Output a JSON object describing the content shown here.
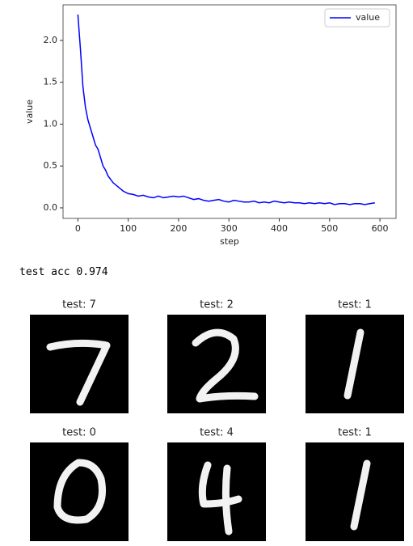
{
  "chart_data": {
    "type": "line",
    "xlabel": "step",
    "ylabel": "value",
    "x": [
      0,
      5,
      10,
      15,
      20,
      25,
      30,
      35,
      40,
      45,
      50,
      55,
      60,
      70,
      80,
      90,
      100,
      110,
      120,
      130,
      140,
      150,
      160,
      170,
      180,
      190,
      200,
      210,
      220,
      230,
      240,
      250,
      260,
      270,
      280,
      290,
      300,
      310,
      320,
      330,
      340,
      350,
      360,
      370,
      380,
      390,
      400,
      410,
      420,
      430,
      440,
      450,
      460,
      470,
      480,
      490,
      500,
      510,
      520,
      530,
      540,
      550,
      560,
      570,
      580,
      590
    ],
    "series": [
      {
        "name": "value",
        "color": "#0000ff",
        "values": [
          2.31,
          1.9,
          1.45,
          1.2,
          1.05,
          0.95,
          0.85,
          0.75,
          0.7,
          0.6,
          0.5,
          0.45,
          0.38,
          0.3,
          0.25,
          0.2,
          0.17,
          0.16,
          0.14,
          0.15,
          0.13,
          0.12,
          0.14,
          0.12,
          0.13,
          0.14,
          0.13,
          0.14,
          0.12,
          0.1,
          0.11,
          0.09,
          0.08,
          0.09,
          0.1,
          0.08,
          0.07,
          0.09,
          0.08,
          0.07,
          0.07,
          0.08,
          0.06,
          0.07,
          0.06,
          0.08,
          0.07,
          0.06,
          0.07,
          0.06,
          0.06,
          0.05,
          0.06,
          0.05,
          0.06,
          0.05,
          0.06,
          0.04,
          0.05,
          0.05,
          0.04,
          0.05,
          0.05,
          0.04,
          0.05,
          0.06
        ]
      }
    ],
    "xlim": [
      -29.5,
      632
    ],
    "ylim": [
      -0.126,
      2.425
    ],
    "xticks": [
      0,
      100,
      200,
      300,
      400,
      500,
      600
    ],
    "yticks": [
      {
        "value": 0,
        "label": "0.0"
      },
      0.5,
      {
        "value": 1,
        "label": "1.0"
      },
      1.5,
      {
        "value": 2,
        "label": "2.0"
      }
    ],
    "legend": "upper right"
  },
  "output_text": "test acc 0.974",
  "image_titles": [
    "test: 7",
    "test: 2",
    "test: 1",
    "test: 0",
    "test: 4",
    "test: 1"
  ]
}
